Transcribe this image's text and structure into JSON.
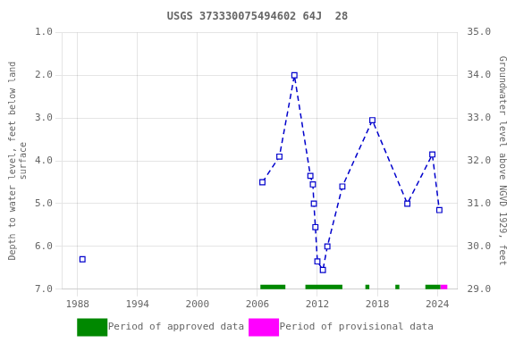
{
  "chart_data": {
    "type": "line",
    "title": "USGS 373330075494602 64J  28",
    "ylabel": "Depth to water level, feet below land\nsurface",
    "y2label": "Groundwater level above NGVD 1929, feet",
    "xlim": [
      1986.5,
      2026
    ],
    "xticks": [
      1988,
      1994,
      2000,
      2006,
      2012,
      2018,
      2024
    ],
    "ylim": [
      7.0,
      1.0
    ],
    "yticks": [
      {
        "value": 1.0,
        "label": "1.0"
      },
      {
        "value": 2.0,
        "label": "2.0"
      },
      {
        "value": 3.0,
        "label": "3.0"
      },
      {
        "value": 4.0,
        "label": "4.0"
      },
      {
        "value": 5.0,
        "label": "5.0"
      },
      {
        "value": 6.0,
        "label": "6.0"
      },
      {
        "value": 7.0,
        "label": "7.0"
      }
    ],
    "y2lim": [
      29.0,
      35.0
    ],
    "y2ticks": [
      {
        "value": 35.0,
        "label": "35.0"
      },
      {
        "value": 34.0,
        "label": "34.0"
      },
      {
        "value": 33.0,
        "label": "33.0"
      },
      {
        "value": 32.0,
        "label": "32.0"
      },
      {
        "value": 31.0,
        "label": "31.0"
      },
      {
        "value": 30.0,
        "label": "30.0"
      },
      {
        "value": 29.0,
        "label": "29.0"
      }
    ],
    "series": [
      {
        "x": [
          2006.5,
          2008.2,
          2009.7,
          2011.3,
          2011.55,
          2011.65,
          2011.8,
          2012.0,
          2012.55,
          2013.0,
          2014.5,
          2017.5,
          2021.0,
          2023.5,
          2024.2
        ],
        "values": [
          4.5,
          3.9,
          2.0,
          4.35,
          4.55,
          5.0,
          5.55,
          6.35,
          6.55,
          6.0,
          4.6,
          3.05,
          5.0,
          3.85,
          5.15
        ],
        "color": "#0000cc",
        "marker": "square",
        "line_style": "dashed"
      },
      {
        "x": [
          1988.5
        ],
        "values": [
          6.3
        ],
        "color": "#0000cc",
        "marker": "square",
        "line_style": "none"
      }
    ],
    "period_y": 7.0,
    "periods": [
      {
        "name": "Period of approved data",
        "color": "#008800",
        "ranges": [
          [
            2006.3,
            2008.8
          ],
          [
            2010.8,
            2014.5
          ],
          [
            2016.8,
            2017.2
          ],
          [
            2019.8,
            2020.2
          ],
          [
            2022.8,
            2024.3
          ]
        ]
      },
      {
        "name": "Period of provisional data",
        "color": "#ff00ff",
        "ranges": [
          [
            2024.3,
            2025.0
          ]
        ]
      }
    ],
    "grid": true,
    "legend": "bottom"
  }
}
